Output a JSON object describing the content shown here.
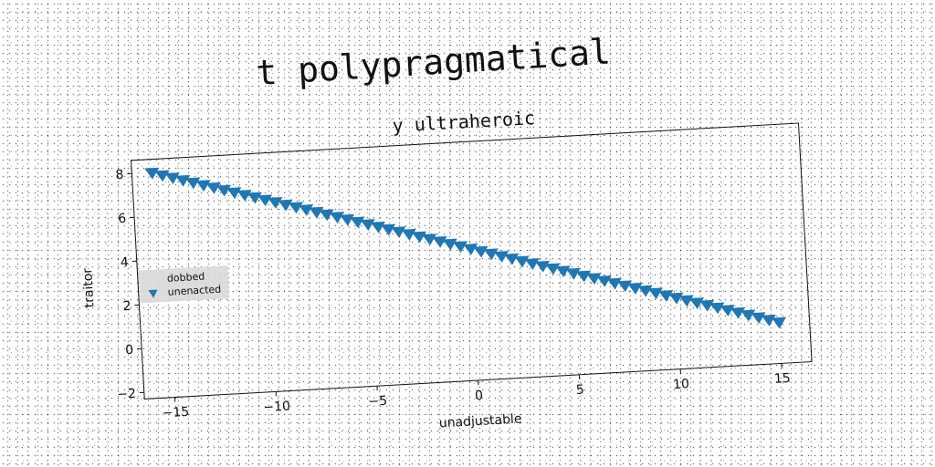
{
  "title": "t polypragmatical",
  "chart_data": {
    "type": "scatter",
    "title": "y ultraheroic",
    "xlabel": "unadjustable",
    "ylabel": "traitor",
    "xlim": [
      -16.5,
      16.5
    ],
    "ylim": [
      -2.3,
      8.6
    ],
    "xticks": [
      -15,
      -10,
      -5,
      0,
      5,
      10,
      15
    ],
    "xtick_labels": [
      "−15",
      "−10",
      "−5",
      "0",
      "5",
      "10",
      "15"
    ],
    "yticks": [
      -2,
      0,
      2,
      4,
      6,
      8
    ],
    "ytick_labels": [
      "−2",
      "0",
      "2",
      "4",
      "6",
      "8"
    ],
    "grid": false,
    "legend": {
      "placement": "center-left",
      "entries": [
        {
          "label": "dobbed",
          "marker": "none"
        },
        {
          "label": "unenacted",
          "marker": "triangle-down",
          "color": "#1f77b4"
        }
      ]
    },
    "series": [
      {
        "name": "unenacted",
        "marker": "triangle-down",
        "color": "#1f77b4",
        "x_start": -15.5,
        "x_end": 15.0,
        "y_start": 8.0,
        "y_end": -0.4,
        "count": 62
      }
    ]
  }
}
